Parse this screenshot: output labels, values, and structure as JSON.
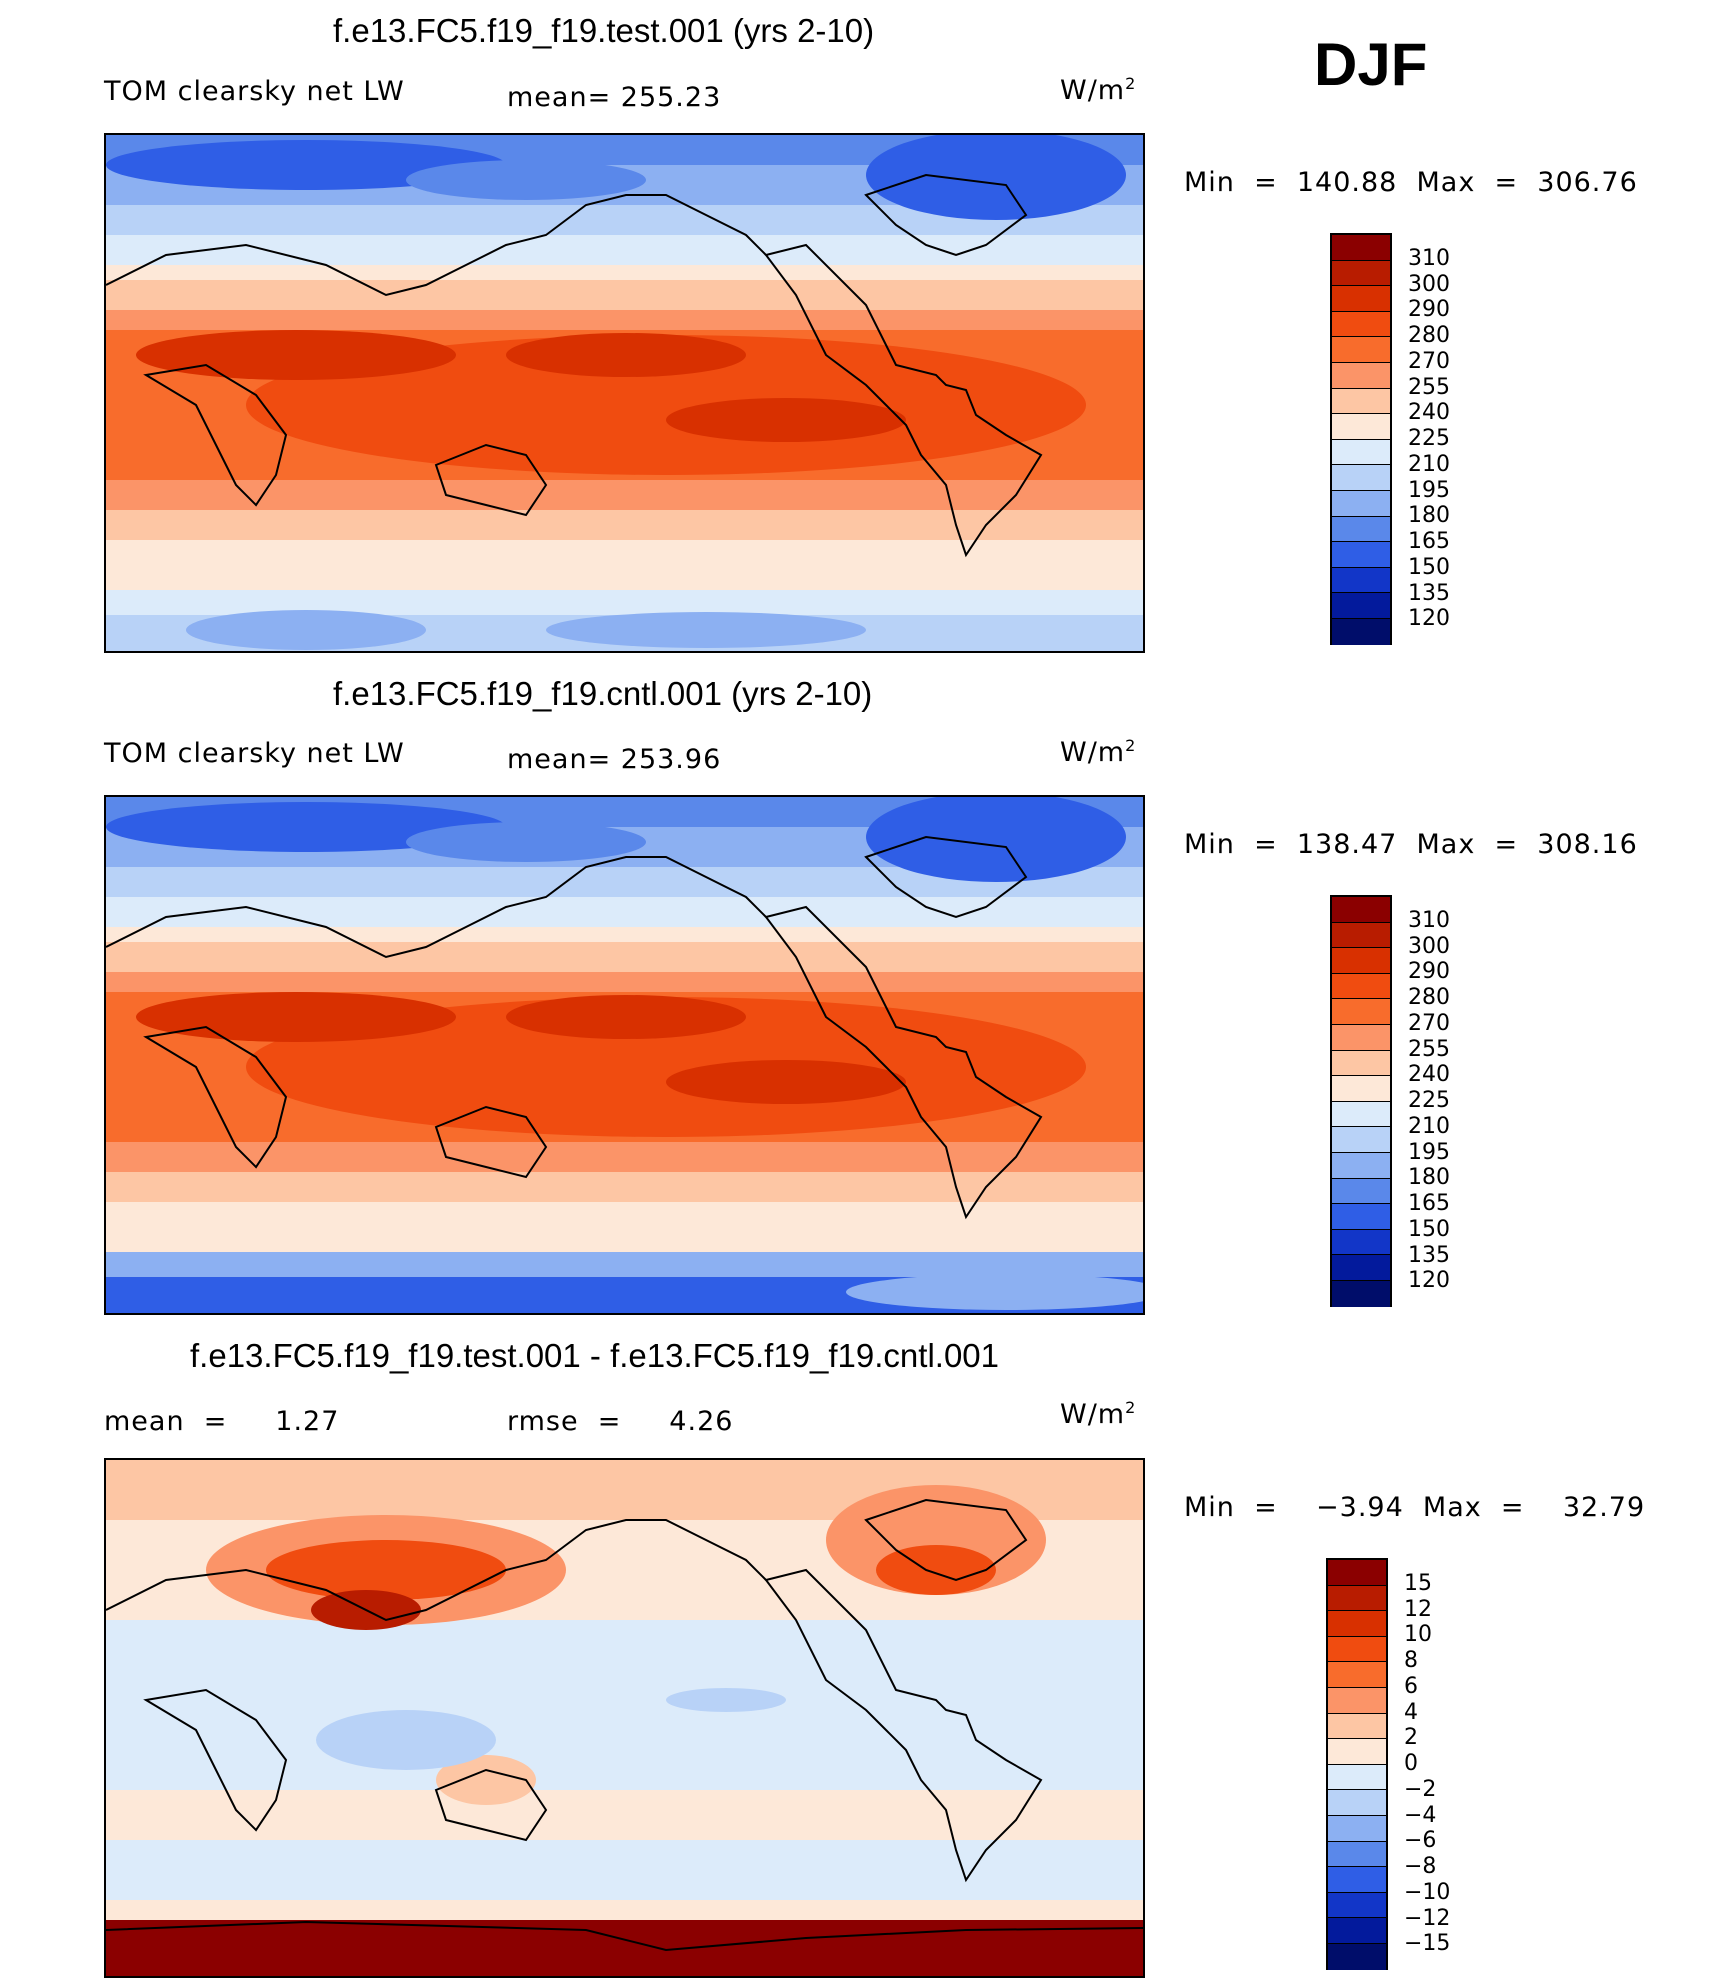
{
  "season": "DJF",
  "units": "W/m",
  "units_sup": "2",
  "panels": [
    {
      "title": "f.e13.FC5.f19_f19.test.001 (yrs 2-10)",
      "variable": "TOM clearsky net LW",
      "stat_left": "mean= 255.23",
      "min_max": "Min  =  140.88  Max  =  306.76",
      "colorbar_levels": [
        "310",
        "300",
        "290",
        "280",
        "270",
        "255",
        "240",
        "225",
        "210",
        "195",
        "180",
        "165",
        "150",
        "135",
        "120"
      ]
    },
    {
      "title": "f.e13.FC5.f19_f19.cntl.001 (yrs 2-10)",
      "variable": "TOM clearsky net LW",
      "stat_left": "mean= 253.96",
      "min_max": "Min  =  138.47  Max  =  308.16",
      "colorbar_levels": [
        "310",
        "300",
        "290",
        "280",
        "270",
        "255",
        "240",
        "225",
        "210",
        "195",
        "180",
        "165",
        "150",
        "135",
        "120"
      ]
    },
    {
      "title": "f.e13.FC5.f19_f19.test.001 - f.e13.FC5.f19_f19.cntl.001",
      "stat_mean": "mean  =     1.27",
      "stat_rmse": "rmse  =     4.26",
      "min_max": "Min  =    −3.94  Max  =    32.79",
      "colorbar_levels": [
        "15",
        "12",
        "10",
        "8",
        "6",
        "4",
        "2",
        "0",
        "−2",
        "−4",
        "−6",
        "−8",
        "−10",
        "−12",
        "−15"
      ]
    }
  ],
  "colors": {
    "abs_scale": [
      "#8b0000",
      "#b81c00",
      "#d83000",
      "#f04c10",
      "#f86c2c",
      "#fb9468",
      "#fdc6a4",
      "#fde8d8",
      "#dcebfa",
      "#b8d2f7",
      "#8cb0f2",
      "#5a88ea",
      "#2f5ee6",
      "#1236c8",
      "#031a9c",
      "#000d6a"
    ],
    "diff_scale": [
      "#8b0000",
      "#b81c00",
      "#d83000",
      "#f04c10",
      "#f86c2c",
      "#fb9468",
      "#fdc6a4",
      "#fde8d8",
      "#dcebfa",
      "#b8d2f7",
      "#8cb0f2",
      "#5a88ea",
      "#2f5ee6",
      "#1236c8",
      "#031a9c",
      "#000d6a"
    ]
  }
}
